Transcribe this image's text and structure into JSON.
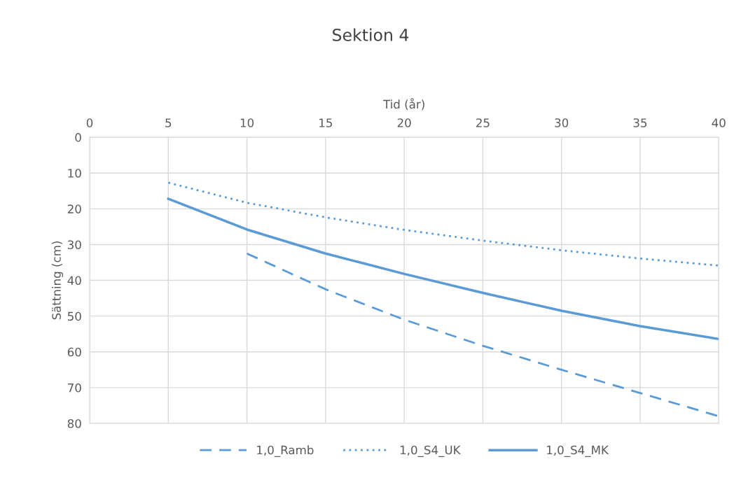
{
  "chart_data": {
    "type": "line",
    "title": "Sektion 4",
    "xlabel": "Tid (år)",
    "ylabel": "Sättning (cm)",
    "xlim": [
      0,
      40
    ],
    "xticks": [
      0,
      5,
      10,
      15,
      20,
      25,
      30,
      35,
      40
    ],
    "ylim": [
      80,
      0
    ],
    "yticks": [
      0,
      10,
      20,
      30,
      40,
      50,
      60,
      70,
      80
    ],
    "grid": true,
    "legend": "bottom",
    "marker": "none",
    "series": [
      {
        "name": "1,0_Ramb",
        "color": "#5b9bd5",
        "line_style": "dashed",
        "x": [
          10,
          15,
          20,
          25,
          30,
          35,
          40
        ],
        "values": [
          32.5,
          42.5,
          51,
          58.3,
          65,
          71.5,
          78
        ]
      },
      {
        "name": "1,0_S4_UK",
        "color": "#5b9bd5",
        "line_style": "dotted",
        "x": [
          5,
          10,
          15,
          20,
          25,
          30,
          35,
          40
        ],
        "values": [
          12.7,
          18.3,
          22.4,
          25.9,
          28.9,
          31.6,
          33.9,
          35.9
        ]
      },
      {
        "name": "1,0_S4_MK",
        "color": "#5b9bd5",
        "line_style": "solid",
        "x": [
          5,
          10,
          15,
          20,
          25,
          30,
          35,
          40
        ],
        "values": [
          17.2,
          25.8,
          32.5,
          38.2,
          43.5,
          48.5,
          52.8,
          56.4
        ]
      }
    ]
  }
}
